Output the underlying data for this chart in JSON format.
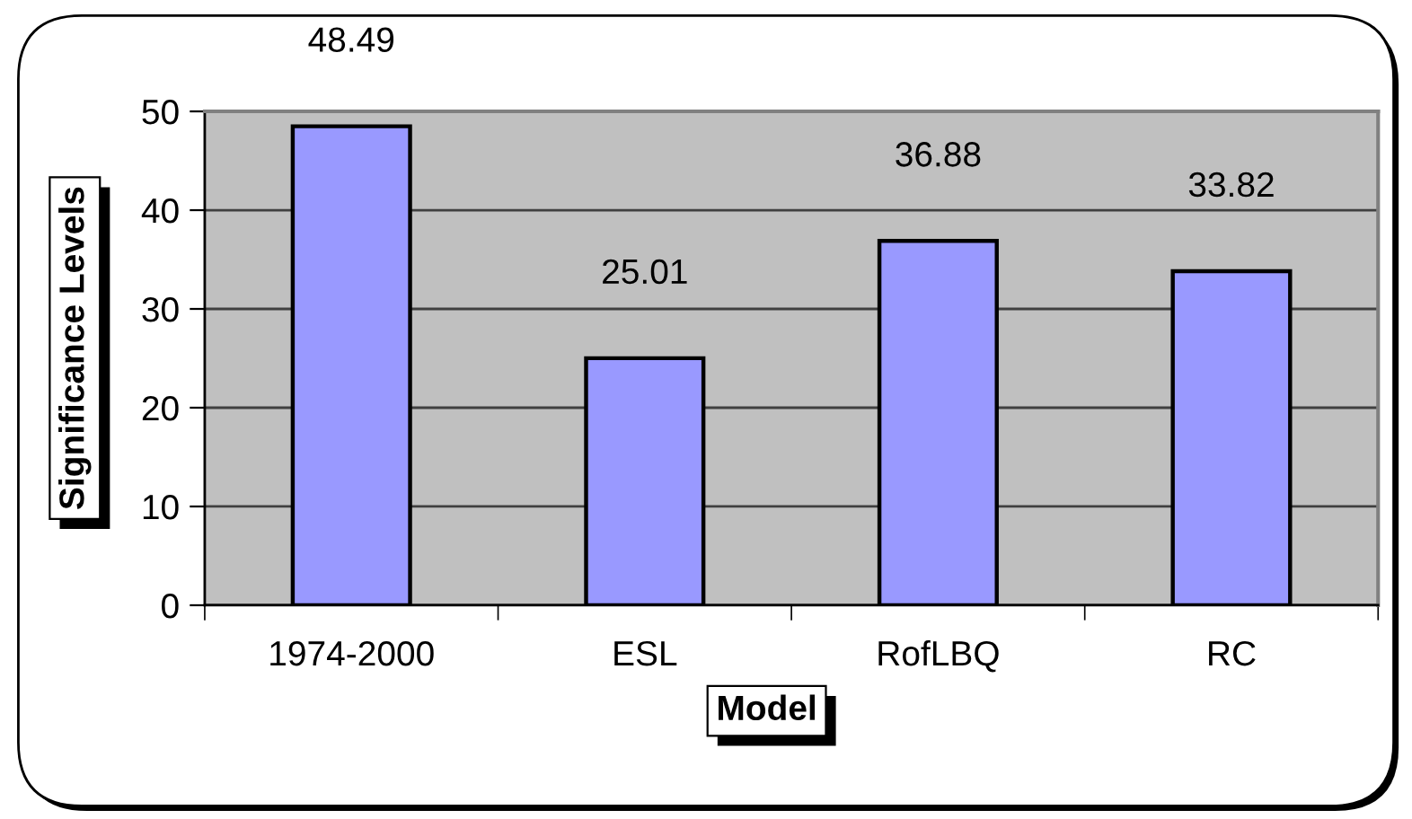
{
  "chart_data": {
    "type": "bar",
    "xlabel": "Model",
    "ylabel": "Significance Levels",
    "categories": [
      "1974-2000",
      "ESL",
      "RofLBQ",
      "RC"
    ],
    "values": [
      48.49,
      25.01,
      36.88,
      33.82
    ],
    "color": "#9999ff",
    "ylim": [
      0,
      50
    ],
    "yticks": [
      0,
      10,
      20,
      30,
      40,
      50
    ],
    "grid": "y",
    "data_labels": true
  }
}
